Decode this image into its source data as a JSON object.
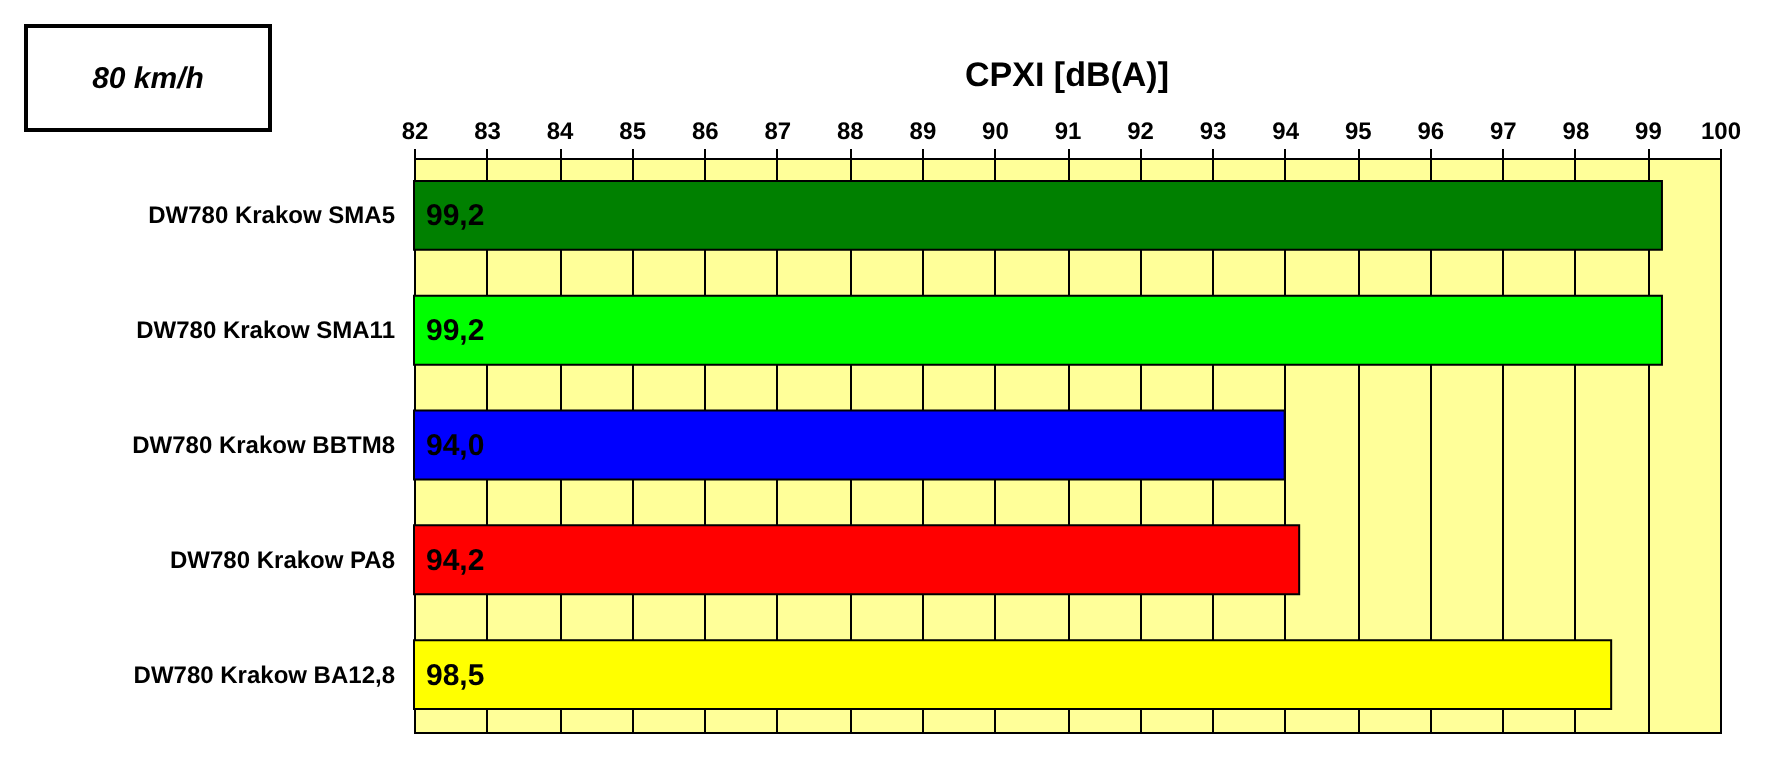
{
  "chart_data": {
    "type": "bar",
    "orientation": "horizontal",
    "title": "CPXI   [dB(A)]",
    "annotations": [
      "80 km/h"
    ],
    "categories": [
      "DW780 Krakow SMA5",
      "DW780 Krakow SMA11",
      "DW780 Krakow BBTM8",
      "DW780 Krakow PA8",
      "DW780 Krakow BA12,8"
    ],
    "values": [
      99.2,
      99.2,
      94.0,
      94.2,
      98.5
    ],
    "colors": [
      "#008000",
      "#00ff00",
      "#0000ff",
      "#ff0000",
      "#ffff00"
    ],
    "value_labels": [
      "99,2",
      "99,2",
      "94,0",
      "94,2",
      "98,5"
    ],
    "xlim": [
      82,
      100
    ],
    "xticks": [
      82,
      83,
      84,
      85,
      86,
      87,
      88,
      89,
      90,
      91,
      92,
      93,
      94,
      95,
      96,
      97,
      98,
      99,
      100
    ],
    "grid": "x",
    "legend": false
  }
}
